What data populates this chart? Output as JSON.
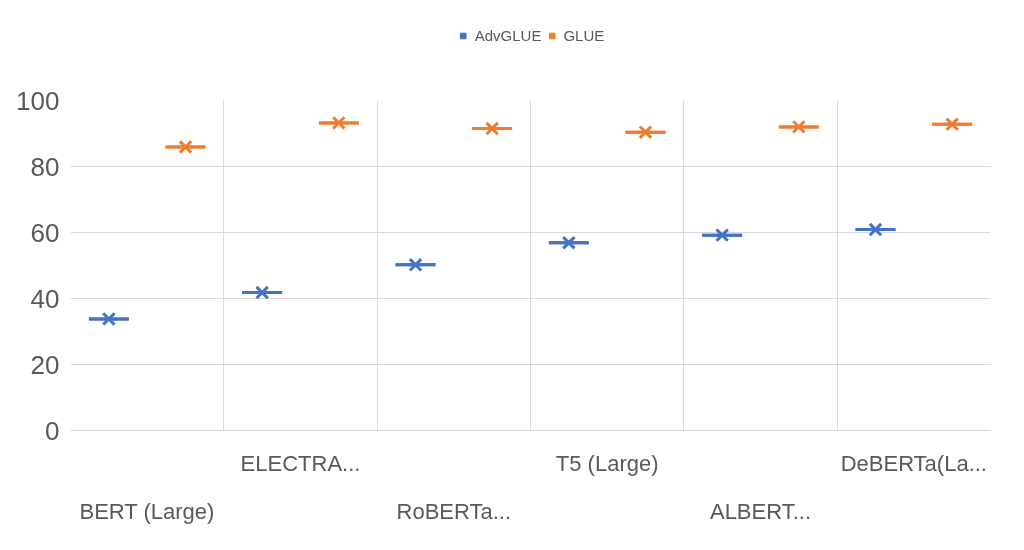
{
  "chart_data": {
    "type": "box",
    "categories": [
      "BERT (Large)",
      "ELECTRA...",
      "RoBERTa...",
      "T5 (Large)",
      "ALBERT...",
      "DeBERTa(La..."
    ],
    "series": [
      {
        "name": "AdvGLUE",
        "color": "#4472c4",
        "boxes": [
          {
            "low": 33.8,
            "q1": 33.8,
            "median": 33.8,
            "q3": 33.8,
            "high": 33.8,
            "mean": 33.8
          },
          {
            "low": 41.8,
            "q1": 41.8,
            "median": 41.8,
            "q3": 41.8,
            "high": 41.8,
            "mean": 41.8
          },
          {
            "low": 50.2,
            "q1": 50.2,
            "median": 50.2,
            "q3": 50.2,
            "high": 50.2,
            "mean": 50.2
          },
          {
            "low": 56.9,
            "q1": 56.9,
            "median": 56.9,
            "q3": 56.9,
            "high": 56.9,
            "mean": 56.9
          },
          {
            "low": 59.2,
            "q1": 59.2,
            "median": 59.2,
            "q3": 59.2,
            "high": 59.2,
            "mean": 59.2
          },
          {
            "low": 60.9,
            "q1": 60.9,
            "median": 60.9,
            "q3": 60.9,
            "high": 60.9,
            "mean": 60.9
          }
        ]
      },
      {
        "name": "GLUE",
        "color": "#ed7d31",
        "boxes": [
          {
            "low": 85.9,
            "q1": 85.9,
            "median": 85.9,
            "q3": 85.9,
            "high": 85.9,
            "mean": 85.9
          },
          {
            "low": 93.2,
            "q1": 93.2,
            "median": 93.2,
            "q3": 93.2,
            "high": 93.2,
            "mean": 93.2
          },
          {
            "low": 91.5,
            "q1": 91.5,
            "median": 91.5,
            "q3": 91.5,
            "high": 91.5,
            "mean": 91.5
          },
          {
            "low": 90.4,
            "q1": 90.4,
            "median": 90.4,
            "q3": 90.4,
            "high": 90.4,
            "mean": 90.4
          },
          {
            "low": 92.0,
            "q1": 92.0,
            "median": 92.0,
            "q3": 92.0,
            "high": 92.0,
            "mean": 92.0
          },
          {
            "low": 92.8,
            "q1": 92.8,
            "median": 92.8,
            "q3": 92.8,
            "high": 92.8,
            "mean": 92.8
          }
        ]
      }
    ],
    "ylim": [
      0,
      100
    ],
    "yticks": [
      0,
      20,
      40,
      60,
      80,
      100
    ],
    "grid": true,
    "legend": "top",
    "marker": "cross"
  }
}
